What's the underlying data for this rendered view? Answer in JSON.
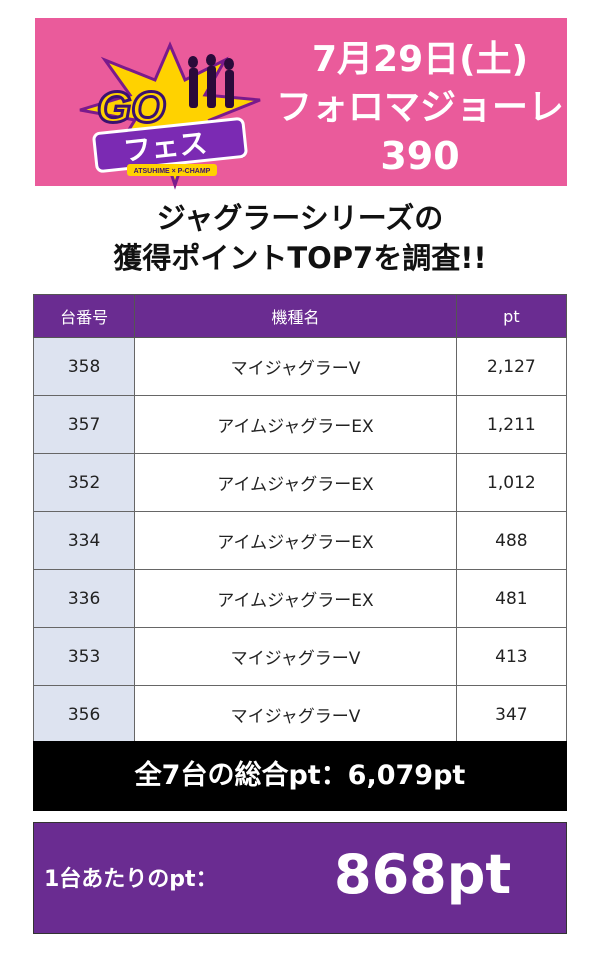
{
  "header": {
    "logo_text": "GO フェス",
    "logo_subtext": "ATSUHIME × P-CHAMP",
    "date": "7月29日(土)",
    "store": "フォロマジョーレ",
    "number": "390"
  },
  "heading": {
    "line1": "ジャグラーシリーズの",
    "line2": "獲得ポイントTOP7を調査!!"
  },
  "table": {
    "columns": [
      "台番号",
      "機種名",
      "pt"
    ],
    "rows": [
      {
        "unit": "358",
        "machine": "マイジャグラーV",
        "pt": "2,127"
      },
      {
        "unit": "357",
        "machine": "アイムジャグラーEX",
        "pt": "1,211"
      },
      {
        "unit": "352",
        "machine": "アイムジャグラーEX",
        "pt": "1,012"
      },
      {
        "unit": "334",
        "machine": "アイムジャグラーEX",
        "pt": "488"
      },
      {
        "unit": "336",
        "machine": "アイムジャグラーEX",
        "pt": "481"
      },
      {
        "unit": "353",
        "machine": "マイジャグラーV",
        "pt": "413"
      },
      {
        "unit": "356",
        "machine": "マイジャグラーV",
        "pt": "347"
      }
    ]
  },
  "total": "全7台の総合pt：6,079pt",
  "average": {
    "label": "1台あたりのpt：",
    "value": "868pt"
  },
  "colors": {
    "header_bg": "#ea5b9b",
    "purple": "#6a2c91",
    "unit_cell_bg": "#dde3f0",
    "total_bg": "#000000"
  }
}
